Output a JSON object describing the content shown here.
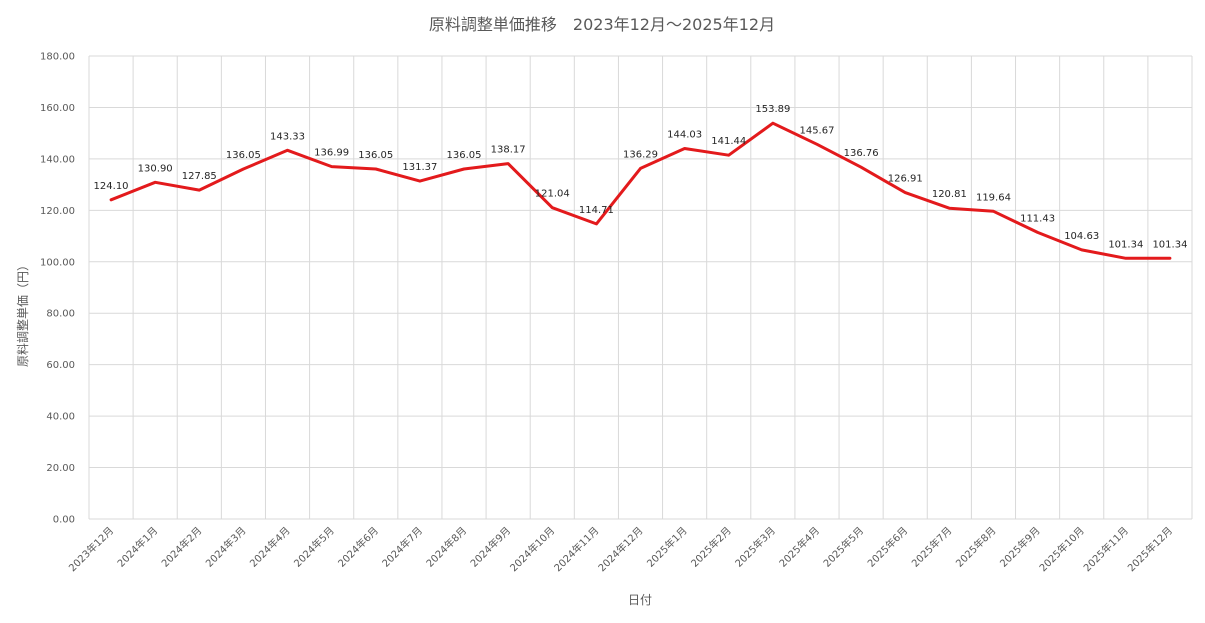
{
  "chart_data": {
    "type": "line",
    "title": "原料調整単価推移　2023年12月～2025年12月",
    "xlabel": "日付",
    "ylabel": "原料調整単価（円）",
    "ylim": [
      0,
      180
    ],
    "y_ticks": [
      "0.00",
      "20.00",
      "40.00",
      "60.00",
      "80.00",
      "100.00",
      "120.00",
      "140.00",
      "160.00",
      "180.00"
    ],
    "categories": [
      "2023年12月",
      "2024年1月",
      "2024年2月",
      "2024年3月",
      "2024年4月",
      "2024年5月",
      "2024年6月",
      "2024年7月",
      "2024年8月",
      "2024年9月",
      "2024年10月",
      "2024年11月",
      "2024年12月",
      "2025年1月",
      "2025年2月",
      "2025年3月",
      "2025年4月",
      "2025年5月",
      "2025年6月",
      "2025年7月",
      "2025年8月",
      "2025年9月",
      "2025年10月",
      "2025年11月",
      "2025年12月"
    ],
    "series": [
      {
        "values": [
          124.1,
          130.9,
          127.85,
          136.05,
          143.33,
          136.99,
          136.05,
          131.37,
          136.05,
          138.17,
          121.04,
          114.71,
          136.29,
          144.03,
          141.44,
          153.89,
          145.67,
          136.76,
          126.91,
          120.81,
          119.64,
          111.43,
          104.63,
          101.34,
          101.34
        ],
        "labels": [
          "124.10",
          "130.90",
          "127.85",
          "136.05",
          "143.33",
          "136.99",
          "136.05",
          "131.37",
          "136.05",
          "138.17",
          "121.04",
          "114.71",
          "136.29",
          "144.03",
          "141.44",
          "153.89",
          "145.67",
          "136.76",
          "126.91",
          "120.81",
          "119.64",
          "111.43",
          "104.63",
          "101.34",
          "101.34"
        ],
        "color": "#e31a1c"
      }
    ],
    "grid": true,
    "legend": "none"
  }
}
